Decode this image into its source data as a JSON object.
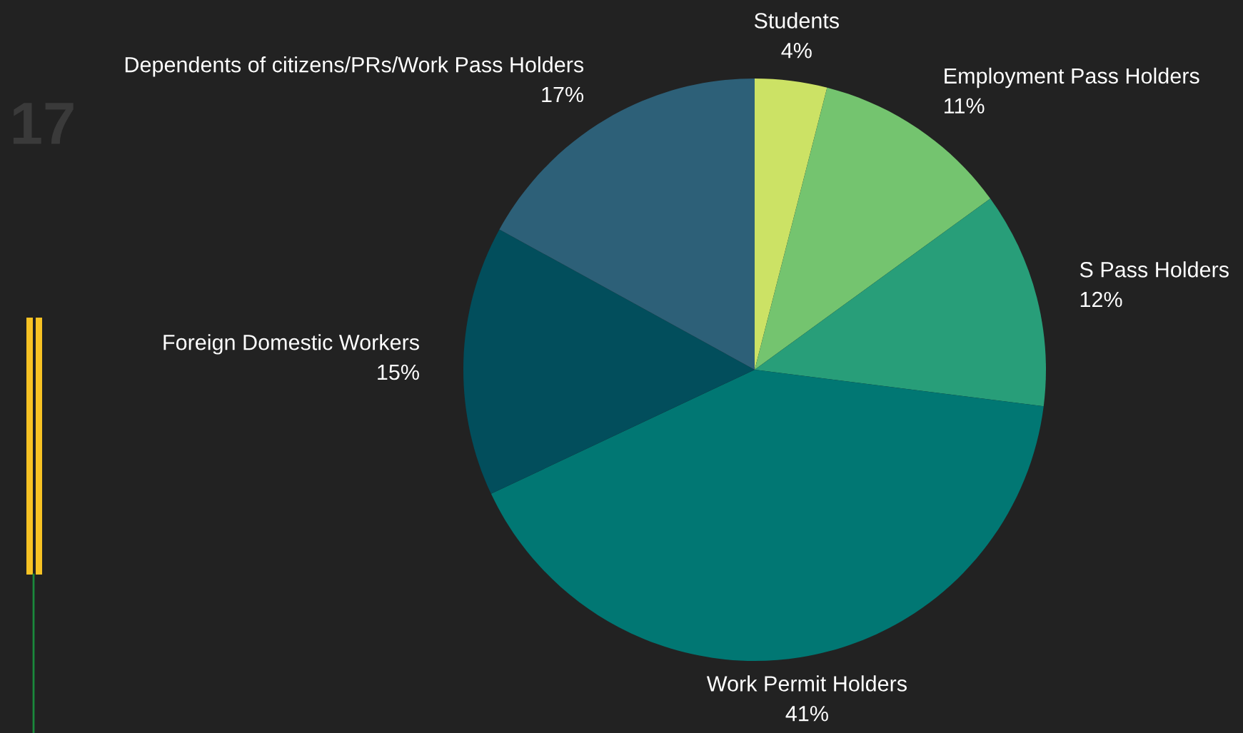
{
  "chart_data": {
    "type": "pie",
    "categories": [
      "Students",
      "Employment Pass Holders",
      "S Pass Holders",
      "Work Permit Holders",
      "Foreign Domestic Workers",
      "Dependents of citizens/PRs/Work Pass Holders"
    ],
    "values": [
      4,
      11,
      12,
      41,
      15,
      17
    ],
    "colors": [
      "#cce265",
      "#74c46f",
      "#289e79",
      "#017773",
      "#024e5c",
      "#2d6078"
    ],
    "value_labels": [
      "4%",
      "11%",
      "12%",
      "41%",
      "15%",
      "17%"
    ],
    "annotations": [
      "17"
    ]
  }
}
